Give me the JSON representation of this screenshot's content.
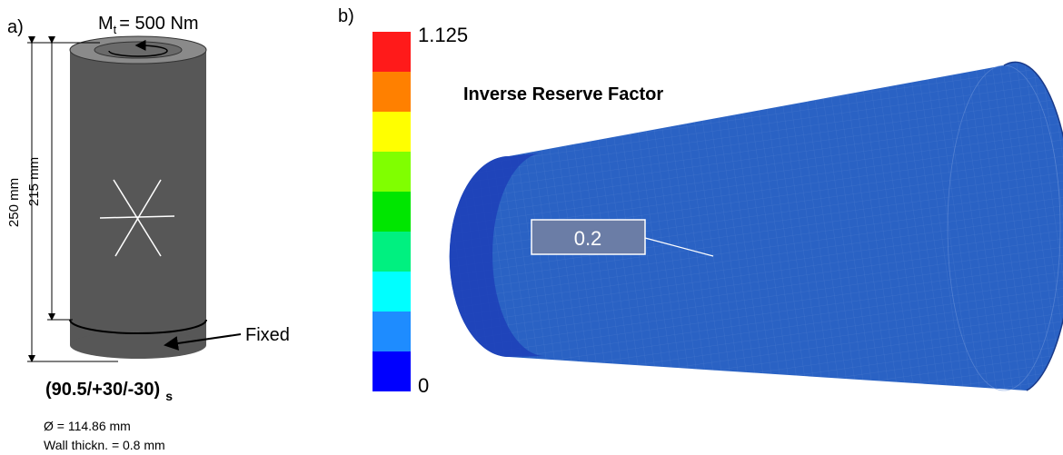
{
  "panel_a": {
    "label": "a)",
    "torque": {
      "symbol": "M",
      "subscript": "t",
      "text": "= 500 Nm"
    },
    "total_length": "250 mm",
    "free_length": "215 mm",
    "support": "Fixed",
    "layup": {
      "text": "(90.5/+30/-30)",
      "subscript": "s"
    },
    "diameter": "Ø = 114.86 mm",
    "wall_thickness": "Wall thickn. = 0.8 mm"
  },
  "panel_b": {
    "label": "b)",
    "title": "Inverse Reserve Factor",
    "scale_max": 1.125,
    "scale_min": 0,
    "annotation": 0.2
  }
}
